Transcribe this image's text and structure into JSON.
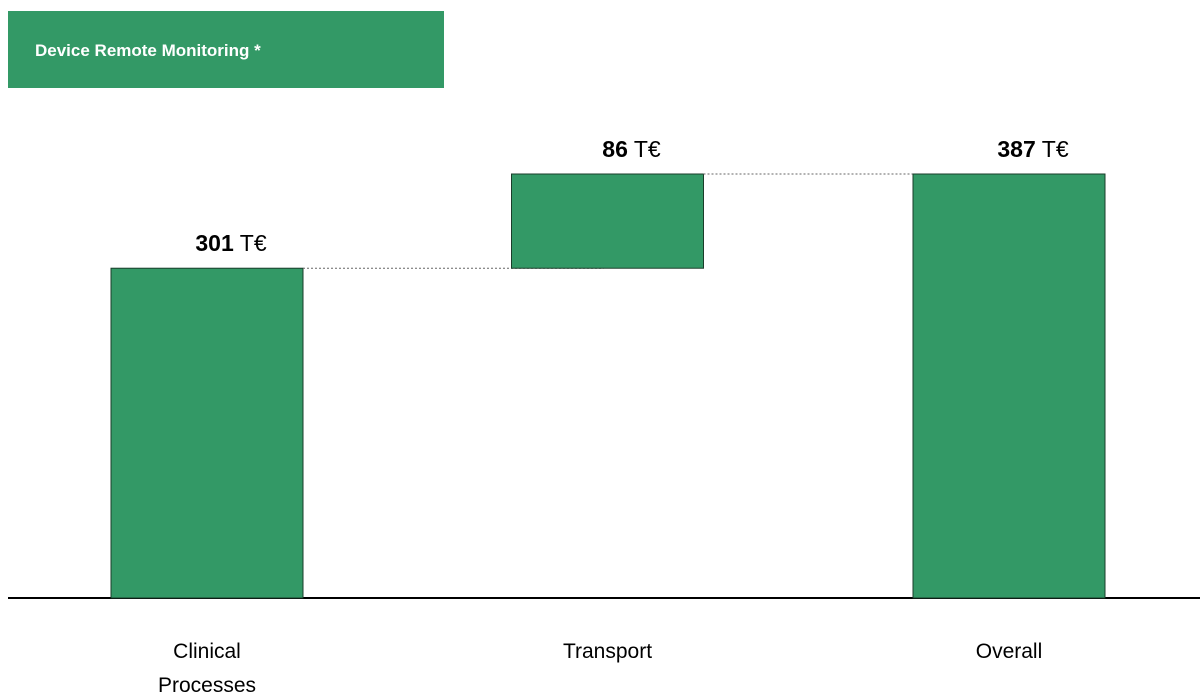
{
  "chart_data": {
    "type": "waterfall",
    "title": "Device Remote Monitoring *",
    "categories": [
      "Clinical Processes",
      "Transport",
      "Overall"
    ],
    "values": [
      301,
      86,
      387
    ],
    "unit": "T€",
    "color": "#339966"
  }
}
